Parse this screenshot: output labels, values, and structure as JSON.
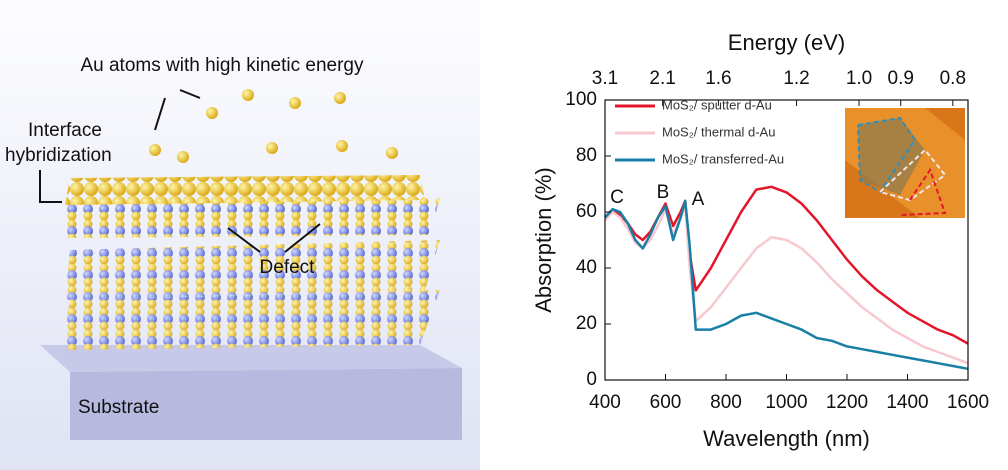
{
  "schematic": {
    "atoms_label": "Au atoms with high kinetic energy",
    "interface_label": [
      "Interface",
      "hybridization"
    ],
    "defect_label": "Defect",
    "substrate_label": "Substrate"
  },
  "chart_data": {
    "type": "line",
    "xlabel": "Wavelength (nm)",
    "ylabel": "Absorption (%)",
    "x2label": "Energy (eV)",
    "xlim": [
      400,
      1600
    ],
    "xticks": [
      400,
      600,
      800,
      1000,
      1200,
      1400,
      1600
    ],
    "ylim": [
      0,
      100
    ],
    "yticks": [
      0,
      20,
      40,
      60,
      80,
      100
    ],
    "x2scale": "reciprocal",
    "x2ticks": [
      3.1,
      2.1,
      1.6,
      1.2,
      {
        "value": 1.0,
        "label": "1.0"
      },
      0.9,
      0.8
    ],
    "legend": "upper left",
    "annotations": [
      "C",
      "B",
      "A"
    ],
    "x": [
      400,
      425,
      450,
      475,
      500,
      525,
      550,
      575,
      600,
      625,
      650,
      665,
      680,
      700,
      750,
      800,
      850,
      900,
      950,
      1000,
      1050,
      1100,
      1150,
      1200,
      1250,
      1300,
      1350,
      1400,
      1450,
      1500,
      1550,
      1600
    ],
    "series": [
      {
        "name": "MoS₂/ sputter d-Au",
        "color": "#e3162b",
        "values": [
          58,
          61,
          59,
          56,
          52,
          50,
          53,
          58,
          63,
          55,
          60,
          64,
          45,
          32,
          40,
          50,
          60,
          68,
          69,
          67,
          63,
          57,
          50,
          43,
          37,
          32,
          28,
          24,
          21,
          18,
          16,
          13
        ]
      },
      {
        "name": "MoS₂/ thermal d-Au",
        "color": "#f7c9cf",
        "values": [
          57,
          60,
          58,
          54,
          49,
          47,
          50,
          55,
          61,
          52,
          58,
          62,
          40,
          21,
          26,
          33,
          40,
          47,
          51,
          50,
          47,
          42,
          36,
          31,
          26,
          22,
          18,
          15,
          12,
          10,
          8,
          6
        ]
      },
      {
        "name": "MoS₂/ transferred-Au",
        "color": "#1a7fa6",
        "values": [
          58,
          61,
          60,
          56,
          50,
          47,
          52,
          58,
          62,
          50,
          58,
          64,
          48,
          18,
          18,
          20,
          23,
          24,
          22,
          20,
          18,
          15,
          14,
          12,
          11,
          10,
          9,
          8,
          7,
          6,
          5,
          4
        ]
      }
    ]
  }
}
